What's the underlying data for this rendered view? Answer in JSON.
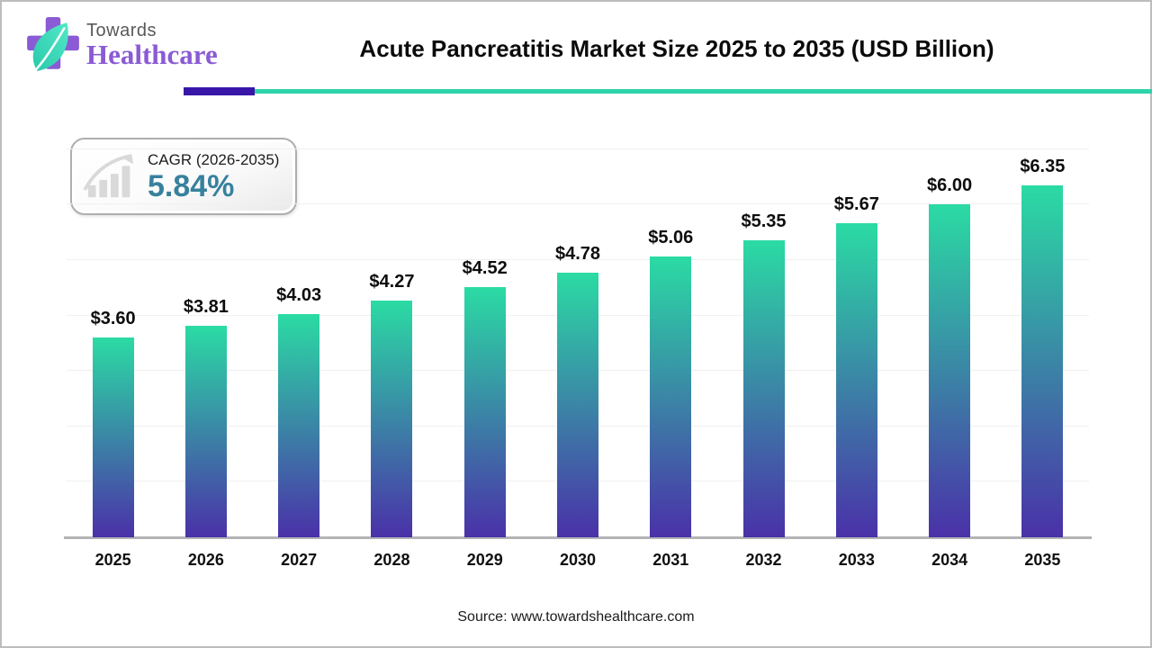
{
  "header": {
    "logo": {
      "line1": "Towards",
      "line2": "Healthcare"
    },
    "title": "Acute Pancreatitis Market Size 2025 to 2035 (USD Billion)"
  },
  "cagr": {
    "label": "CAGR (2026-2035)",
    "value": "5.84%"
  },
  "chart_data": {
    "type": "bar",
    "categories": [
      "2025",
      "2026",
      "2027",
      "2028",
      "2029",
      "2030",
      "2031",
      "2032",
      "2033",
      "2034",
      "2035"
    ],
    "values": [
      3.6,
      3.81,
      4.03,
      4.27,
      4.52,
      4.78,
      5.06,
      5.35,
      5.67,
      6.0,
      6.35
    ],
    "value_labels": [
      "$3.60",
      "$3.81",
      "$4.03",
      "$4.27",
      "$4.52",
      "$4.78",
      "$5.06",
      "$5.35",
      "$5.67",
      "$6.00",
      "$6.35"
    ],
    "title": "Acute Pancreatitis Market Size 2025 to 2035 (USD Billion)",
    "xlabel": "",
    "ylabel": "",
    "ylim": [
      0,
      7
    ],
    "grid": true,
    "legend": false,
    "bar_gradient": [
      "#2bdba4",
      "#4a31a8"
    ]
  },
  "footer": {
    "source": "Source: www.towardshealthcare.com"
  },
  "colors": {
    "bar_top": "#2bdba4",
    "bar_bottom": "#4a31a8",
    "accent_teal": "#2fd4ac",
    "accent_purple": "#3a16a8",
    "cagr_value": "#37819e",
    "logo_purple": "#8a5bd4",
    "gridline": "#f0f0f0",
    "axis": "#b3b4b6"
  }
}
